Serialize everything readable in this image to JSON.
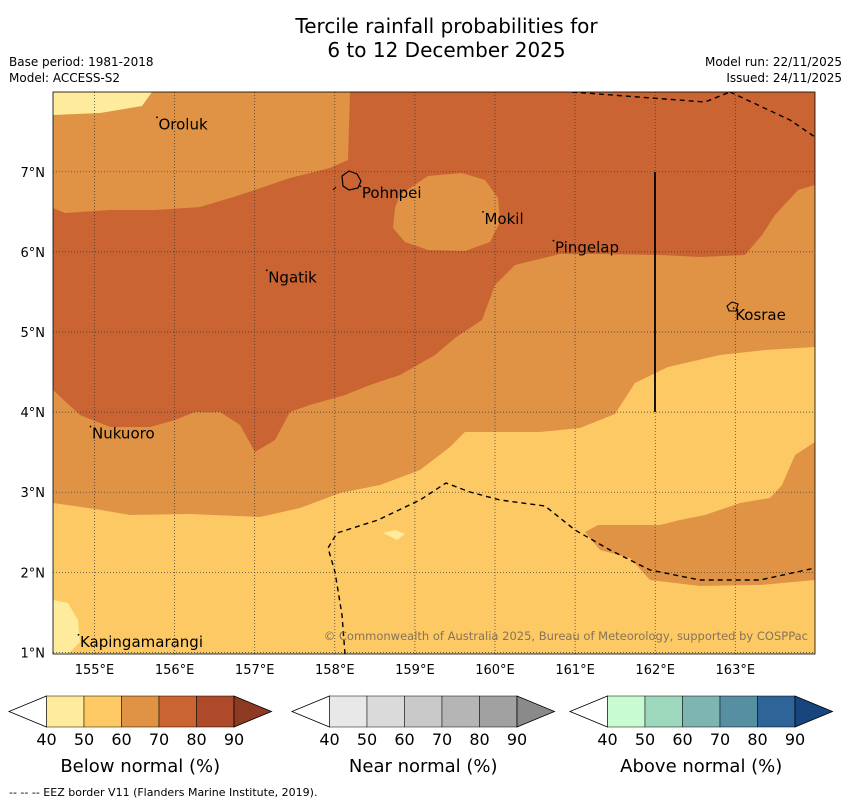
{
  "title": {
    "line1": "Tercile rainfall probabilities for",
    "line2": "6 to 12 December 2025"
  },
  "meta": {
    "base_period": "Base period: 1981-2018",
    "model": "Model: ACCESS-S2",
    "model_run": "Model run: 22/11/2025",
    "issued": "Issued: 24/11/2025"
  },
  "map": {
    "lon_ticks": [
      "155°E",
      "156°E",
      "157°E",
      "158°E",
      "159°E",
      "160°E",
      "161°E",
      "162°E",
      "163°E"
    ],
    "lat_ticks": [
      "7°N",
      "6°N",
      "5°N",
      "4°N",
      "3°N",
      "2°N",
      "1°N"
    ],
    "places": [
      {
        "name": "Oroluk",
        "lon": 155.78,
        "lat": 7.68
      },
      {
        "name": "Pohnpei",
        "lon": 158.32,
        "lat": 6.82
      },
      {
        "name": "Mokil",
        "lon": 159.85,
        "lat": 6.5
      },
      {
        "name": "Pingelap",
        "lon": 160.73,
        "lat": 6.14
      },
      {
        "name": "Ngatik",
        "lon": 157.15,
        "lat": 5.77
      },
      {
        "name": "Kosrae",
        "lon": 162.98,
        "lat": 5.3
      },
      {
        "name": "Nukuoro",
        "lon": 154.95,
        "lat": 3.82
      },
      {
        "name": "Kapingamarangi",
        "lon": 154.8,
        "lat": 1.22
      }
    ],
    "copyright": "© Commonwealth of Australia 2025, Bureau of Meteorology, supported by COSPPac"
  },
  "legends": [
    {
      "title": "Below normal (%)",
      "ticks": [
        "40",
        "50",
        "60",
        "70",
        "80",
        "90"
      ],
      "colors": [
        "#ffffff",
        "#ffeb9c",
        "#fdc965",
        "#e09344",
        "#cb6433",
        "#ad4a2a",
        "#8e3a22"
      ]
    },
    {
      "title": "Near normal (%)",
      "ticks": [
        "40",
        "50",
        "60",
        "70",
        "80",
        "90"
      ],
      "colors": [
        "#ffffff",
        "#e8e8e8",
        "#dadada",
        "#c9c9c9",
        "#b5b5b5",
        "#a1a1a1",
        "#8a8a8a"
      ]
    },
    {
      "title": "Above normal (%)",
      "ticks": [
        "40",
        "50",
        "60",
        "70",
        "80",
        "90"
      ],
      "colors": [
        "#ffffff",
        "#c9fbd3",
        "#9ed8bc",
        "#7fb5b0",
        "#568ea2",
        "#2e6497",
        "#17467f"
      ]
    }
  ],
  "footnote": "--  --  -- EEZ border V11 (Flanders Marine Institute, 2019)."
}
